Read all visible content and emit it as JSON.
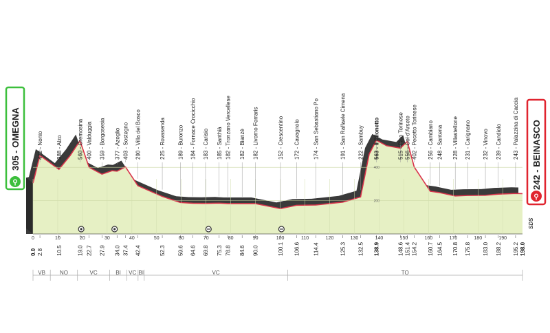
{
  "start": {
    "label": "305 - OMEGNA",
    "color": "#3cbf3c"
  },
  "finish": {
    "label": "242 - BEINASCO",
    "color": "#e0242f"
  },
  "brand": "SDS",
  "colors": {
    "profile_fill": "#e6f0c4",
    "shadow_fill": "#3a3a3a",
    "profile_line": "#d9334a"
  },
  "elevation_ticks": [
    "400",
    "200"
  ],
  "chart_data": {
    "type": "area",
    "xlabel": "",
    "ylabel": "",
    "xlim": [
      0,
      198
    ],
    "ylim": [
      0,
      620
    ],
    "profile": [
      {
        "x": 0,
        "y": 305
      },
      {
        "x": 2.8,
        "y": 472
      },
      {
        "x": 10.5,
        "y": 388
      },
      {
        "x": 15,
        "y": 470
      },
      {
        "x": 19,
        "y": 560
      },
      {
        "x": 22.7,
        "y": 400
      },
      {
        "x": 27.9,
        "y": 359
      },
      {
        "x": 32,
        "y": 380
      },
      {
        "x": 34,
        "y": 377
      },
      {
        "x": 37.4,
        "y": 403
      },
      {
        "x": 42.4,
        "y": 290
      },
      {
        "x": 52.3,
        "y": 225
      },
      {
        "x": 59.6,
        "y": 189
      },
      {
        "x": 64.6,
        "y": 184
      },
      {
        "x": 69.8,
        "y": 183
      },
      {
        "x": 75.3,
        "y": 185
      },
      {
        "x": 78.8,
        "y": 182
      },
      {
        "x": 84.6,
        "y": 182
      },
      {
        "x": 90,
        "y": 182
      },
      {
        "x": 100.1,
        "y": 152
      },
      {
        "x": 106.6,
        "y": 172
      },
      {
        "x": 114.4,
        "y": 174
      },
      {
        "x": 125.3,
        "y": 191
      },
      {
        "x": 132.5,
        "y": 222
      },
      {
        "x": 136,
        "y": 480
      },
      {
        "x": 138.9,
        "y": 563
      },
      {
        "x": 143,
        "y": 530
      },
      {
        "x": 148.6,
        "y": 515
      },
      {
        "x": 151.4,
        "y": 556
      },
      {
        "x": 154.2,
        "y": 402
      },
      {
        "x": 160.7,
        "y": 256
      },
      {
        "x": 164.5,
        "y": 248
      },
      {
        "x": 170.8,
        "y": 228
      },
      {
        "x": 175.8,
        "y": 231
      },
      {
        "x": 183,
        "y": 232
      },
      {
        "x": 188.2,
        "y": 239
      },
      {
        "x": 195.2,
        "y": 243
      },
      {
        "x": 198,
        "y": 242
      }
    ],
    "waypoints": [
      {
        "km": "2.8",
        "km_value": 2.8,
        "alt": 472,
        "name": "Nonio",
        "label": "472 - Nonio",
        "bold": false
      },
      {
        "km": "10.5",
        "km_value": 10.5,
        "alt": 388,
        "name": "Alzo",
        "label": "388 - Alzo",
        "bold": false
      },
      {
        "km": "19.0",
        "km_value": 19.0,
        "alt": 560,
        "name": "Cremosina",
        "label": "560 - Cremosina",
        "bold": false
      },
      {
        "km": "22.7",
        "km_value": 22.7,
        "alt": 400,
        "name": "Valduggia",
        "label": "400 - Valduggia",
        "bold": false
      },
      {
        "km": "27.9",
        "km_value": 27.9,
        "alt": 359,
        "name": "Borgosesia",
        "label": "359 - Borgosesia",
        "bold": false
      },
      {
        "km": "34.0",
        "km_value": 34.0,
        "alt": 377,
        "name": "Azoglio",
        "label": "377 - Azoglio",
        "bold": false
      },
      {
        "km": "37.4",
        "km_value": 37.4,
        "alt": 403,
        "name": "Sostegno",
        "label": "403 - Sostegno",
        "bold": false
      },
      {
        "km": "42.4",
        "km_value": 42.4,
        "alt": 290,
        "name": "Villa del Bosco",
        "label": "290 - Villa del Bosco",
        "bold": false
      },
      {
        "km": "52.3",
        "km_value": 52.3,
        "alt": 225,
        "name": "Rovasenda",
        "label": "225 - Rovasenda",
        "bold": false
      },
      {
        "km": "59.6",
        "km_value": 59.6,
        "alt": 189,
        "name": "Buronzo",
        "label": "189 - Buronzo",
        "bold": false
      },
      {
        "km": "64.6",
        "km_value": 64.6,
        "alt": 184,
        "name": "Fornace Crocicchio",
        "label": "184 - Fornace Crocicchio",
        "bold": false
      },
      {
        "km": "69.8",
        "km_value": 69.8,
        "alt": 183,
        "name": "Carisio",
        "label": "183 - Carisio",
        "bold": false
      },
      {
        "km": "75.3",
        "km_value": 75.3,
        "alt": 185,
        "name": "Santhià",
        "label": "185 - Santhià",
        "bold": false
      },
      {
        "km": "78.8",
        "km_value": 78.8,
        "alt": 182,
        "name": "Tronzano Vercellese",
        "label": "182 - Tronzano Vercellese",
        "bold": false
      },
      {
        "km": "84.6",
        "km_value": 84.6,
        "alt": 182,
        "name": "Bianzè",
        "label": "182 - Bianzè",
        "bold": false
      },
      {
        "km": "90.0",
        "km_value": 90.0,
        "alt": 182,
        "name": "Livorno Ferraris",
        "label": "182 - Livorno Ferraris",
        "bold": false
      },
      {
        "km": "100.1",
        "km_value": 100.1,
        "alt": 152,
        "name": "Crescentino",
        "label": "152 - Crescentino",
        "bold": false
      },
      {
        "km": "106.6",
        "km_value": 106.6,
        "alt": 172,
        "name": "Cavagnolo",
        "label": "172 - Cavagnolo",
        "bold": false
      },
      {
        "km": "114.4",
        "km_value": 114.4,
        "alt": 174,
        "name": "San Sebastiano Po",
        "label": "174 - San Sebastiano Po",
        "bold": false
      },
      {
        "km": "125.3",
        "km_value": 125.3,
        "alt": 191,
        "name": "San Raffaele Cimena",
        "label": "191 - San Raffaele Cimena",
        "bold": false
      },
      {
        "km": "132.5",
        "km_value": 132.5,
        "alt": 222,
        "name": "Sambuy",
        "label": "222 - Sambuy",
        "bold": false
      },
      {
        "km": "138.9",
        "km_value": 138.9,
        "alt": 563,
        "name": "Il Pilonetto",
        "label": "563 - Il Pilonetto",
        "bold": true
      },
      {
        "km": "148.6",
        "km_value": 148.6,
        "alt": 515,
        "name": "Pino Torinese",
        "label": "515 - Pino Torinese",
        "bold": false
      },
      {
        "km": "151.4",
        "km_value": 151.4,
        "alt": 556,
        "name": "Col d'Arsete",
        "label": "556 - Col d'Arsete",
        "bold": false
      },
      {
        "km": "154.2",
        "km_value": 154.2,
        "alt": 402,
        "name": "Pecetto Torinese",
        "label": "402 - Pecetto Torinese",
        "bold": false
      },
      {
        "km": "160.7",
        "km_value": 160.7,
        "alt": 256,
        "name": "Cambiano",
        "label": "256 - Cambiano",
        "bold": false
      },
      {
        "km": "164.5",
        "km_value": 164.5,
        "alt": 248,
        "name": "Santena",
        "label": "248 - Santena",
        "bold": false
      },
      {
        "km": "170.8",
        "km_value": 170.8,
        "alt": 228,
        "name": "Villastellone",
        "label": "228 - Villastellone",
        "bold": false
      },
      {
        "km": "175.8",
        "km_value": 175.8,
        "alt": 231,
        "name": "Carignano",
        "label": "231 - Carignano",
        "bold": false
      },
      {
        "km": "183.0",
        "km_value": 183.0,
        "alt": 232,
        "name": "Vinovo",
        "label": "232 - Vinovo",
        "bold": false
      },
      {
        "km": "188.2",
        "km_value": 188.2,
        "alt": 239,
        "name": "Candiolo",
        "label": "239 - Candiolo",
        "bold": false
      },
      {
        "km": "195.2",
        "km_value": 195.2,
        "alt": 243,
        "name": "Palazzina di Caccia",
        "label": "243 - Palazzina di Caccia",
        "bold": false
      }
    ],
    "extra_km_labels": [
      {
        "text": "0.0",
        "value": 0,
        "bold": true
      },
      {
        "text": "198.0",
        "value": 198,
        "bold": true
      }
    ],
    "km_ticks": [
      "0",
      "10",
      "20",
      "30",
      "40",
      "50",
      "60",
      "70",
      "80",
      "90",
      "100",
      "110",
      "120",
      "130",
      "140",
      "150",
      "160",
      "170",
      "180",
      "190"
    ],
    "markers": [
      {
        "km": 19.5,
        "type": "circle-dot"
      },
      {
        "km": 33,
        "type": "circle-dot"
      },
      {
        "km": 71,
        "type": "circle-bars"
      },
      {
        "km": 100.5,
        "type": "circle-bars"
      }
    ],
    "regions": [
      {
        "label": "VB",
        "from": 0,
        "to": 7
      },
      {
        "label": "NO",
        "from": 7,
        "to": 18
      },
      {
        "label": "VC",
        "from": 18,
        "to": 31
      },
      {
        "label": "BI",
        "from": 31,
        "to": 38
      },
      {
        "label": "VC",
        "from": 38,
        "to": 42.5
      },
      {
        "label": "BI",
        "from": 42.5,
        "to": 45
      },
      {
        "label": "VC",
        "from": 45,
        "to": 103
      },
      {
        "label": "TO",
        "from": 103,
        "to": 198
      }
    ]
  }
}
